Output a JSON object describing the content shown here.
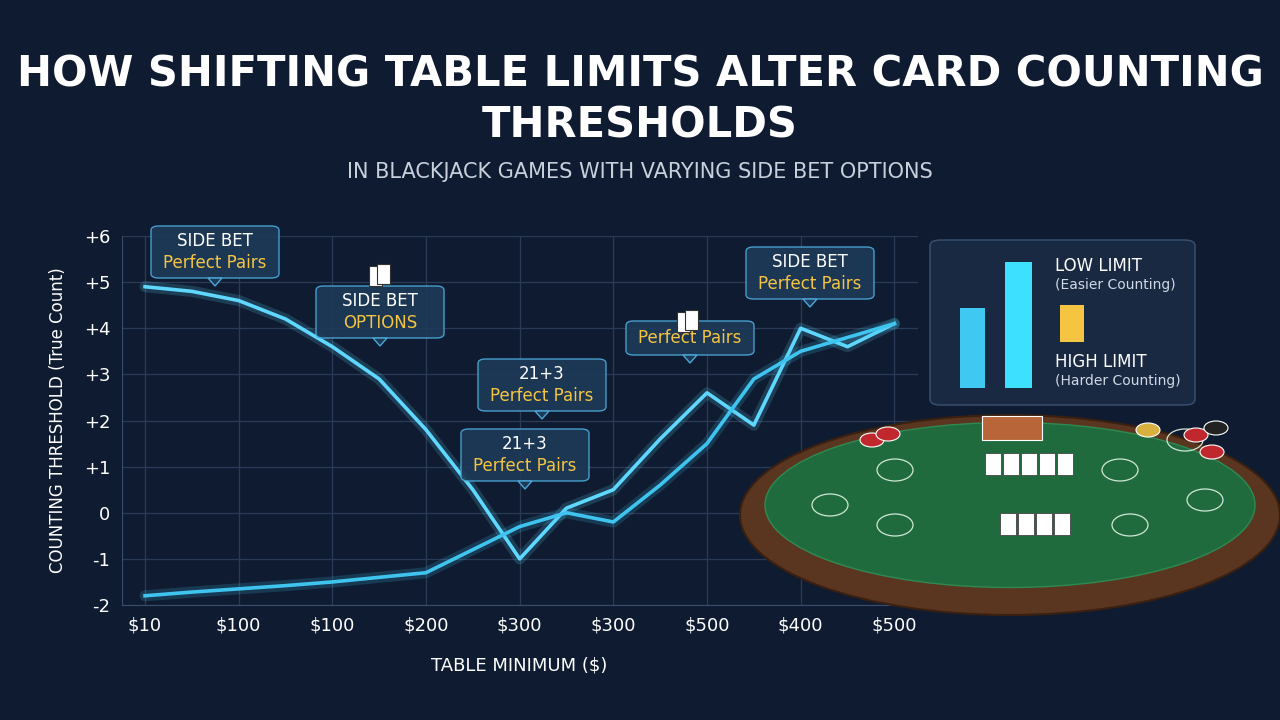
{
  "chart_data": {
    "type": "line",
    "title": "HOW SHIFTING TABLE LIMITS ALTER CARD COUNTING THRESHOLDS",
    "subtitle": "IN BLACKJACK GAMES WITH VARYING SIDE BET OPTIONS",
    "x_label": "TABLE MINIMUM ($)",
    "y_label": "COUNTING THRESHOLD (True Count)",
    "categories": [
      "$10",
      null,
      "$100",
      null,
      "$100",
      null,
      "$200",
      null,
      "$300",
      null,
      "$300",
      null,
      "$500",
      null,
      "$400",
      null,
      "$500"
    ],
    "series": [
      {
        "color": "#5fd8ff",
        "values": [
          4.9,
          4.8,
          4.6,
          4.2,
          3.6,
          2.9,
          1.8,
          0.5,
          -1.0,
          0.1,
          0.5,
          1.6,
          2.6,
          1.9,
          4.0,
          3.6,
          4.1
        ]
      },
      {
        "color": "#3fc4f0",
        "values": [
          -1.8,
          -1.72,
          -1.65,
          -1.58,
          -1.5,
          -1.4,
          -1.3,
          -0.8,
          -0.3,
          0.0,
          -0.2,
          0.6,
          1.5,
          2.9,
          3.5,
          3.8,
          4.1
        ]
      }
    ],
    "ylim": [
      -2,
      6
    ],
    "yticks": [
      -2,
      -1,
      0,
      {
        "value": 1,
        "label": "+1"
      },
      {
        "value": 2,
        "label": "+2"
      },
      {
        "value": 3,
        "label": "+3"
      },
      {
        "value": 4,
        "label": "+4"
      },
      {
        "value": 5,
        "label": "+5"
      },
      {
        "value": 6,
        "label": "+6"
      }
    ],
    "grid": true,
    "annotations": [
      {
        "heading": "SIDE BET",
        "text": "Perfect Pairs"
      },
      {
        "heading": "SIDE BET",
        "text": "OPTIONS"
      },
      {
        "heading": "21+3",
        "text": "Perfect Pairs"
      },
      {
        "heading": "21+3",
        "text": "Perfect Pairs"
      },
      {
        "text": "Perfect Pairs"
      },
      {
        "heading": "SIDE BET",
        "text": "Perfect Pairs"
      }
    ],
    "inset": {
      "items": [
        {
          "label": "LOW LIMIT",
          "note": "(Easier Counting)"
        },
        {
          "label": "HIGH LIMIT",
          "note": "(Harder Counting)"
        }
      ]
    }
  }
}
